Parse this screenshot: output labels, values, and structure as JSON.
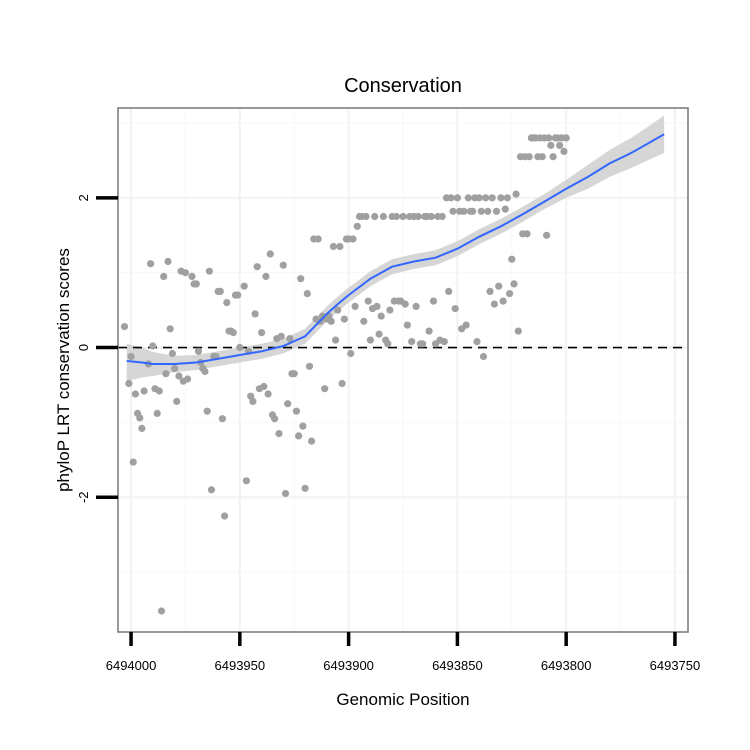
{
  "chart_data": {
    "type": "scatter",
    "title": "Conservation",
    "xlabel": "Genomic Position",
    "ylabel": "phyloP LRT conservation scores",
    "x_reversed": true,
    "xlim": [
      6494006,
      6493744
    ],
    "ylim": [
      -3.8,
      3.2
    ],
    "x_ticks": [
      6494000,
      6493950,
      6493900,
      6493850,
      6493800,
      6493750
    ],
    "x_tick_labels": [
      "6494000",
      "6493950",
      "6493900",
      "6493850",
      "6493800",
      "6493750"
    ],
    "y_ticks": [
      -2,
      0,
      2
    ],
    "y_tick_labels": [
      "-2",
      "0",
      "2"
    ],
    "reference_line": {
      "y": 0,
      "style": "dashed"
    },
    "points": [
      [
        6494003,
        0.28
      ],
      [
        6494001,
        -0.48
      ],
      [
        6494000,
        -0.12
      ],
      [
        6493999,
        -1.53
      ],
      [
        6493998,
        -0.62
      ],
      [
        6493997,
        -0.88
      ],
      [
        6493996,
        -0.94
      ],
      [
        6493995,
        -1.08
      ],
      [
        6493994,
        -0.58
      ],
      [
        6493992,
        -0.22
      ],
      [
        6493991,
        1.12
      ],
      [
        6493990,
        0.02
      ],
      [
        6493989,
        -0.55
      ],
      [
        6493988,
        -0.88
      ],
      [
        6493987,
        -0.58
      ],
      [
        6493986,
        -3.52
      ],
      [
        6493985,
        0.95
      ],
      [
        6493984,
        -0.35
      ],
      [
        6493983,
        1.15
      ],
      [
        6493982,
        0.25
      ],
      [
        6493981,
        -0.08
      ],
      [
        6493980,
        -0.28
      ],
      [
        6493979,
        -0.72
      ],
      [
        6493978,
        -0.38
      ],
      [
        6493977,
        1.02
      ],
      [
        6493976,
        -0.45
      ],
      [
        6493975,
        1.0
      ],
      [
        6493974,
        -0.42
      ],
      [
        6493972,
        0.95
      ],
      [
        6493971,
        0.85
      ],
      [
        6493970,
        0.85
      ],
      [
        6493969,
        -0.05
      ],
      [
        6493968,
        -0.2
      ],
      [
        6493967,
        -0.28
      ],
      [
        6493966,
        -0.32
      ],
      [
        6493965,
        -0.85
      ],
      [
        6493964,
        1.02
      ],
      [
        6493963,
        -1.9
      ],
      [
        6493962,
        -0.12
      ],
      [
        6493961,
        -0.12
      ],
      [
        6493960,
        0.75
      ],
      [
        6493959,
        0.75
      ],
      [
        6493958,
        -0.95
      ],
      [
        6493957,
        -2.25
      ],
      [
        6493956,
        0.6
      ],
      [
        6493955,
        0.22
      ],
      [
        6493954,
        0.22
      ],
      [
        6493953,
        0.2
      ],
      [
        6493952,
        0.7
      ],
      [
        6493951,
        0.7
      ],
      [
        6493950,
        0.0
      ],
      [
        6493948,
        0.82
      ],
      [
        6493947,
        -1.78
      ],
      [
        6493946,
        -0.05
      ],
      [
        6493945,
        -0.65
      ],
      [
        6493944,
        -0.72
      ],
      [
        6493943,
        0.45
      ],
      [
        6493942,
        1.08
      ],
      [
        6493941,
        -0.55
      ],
      [
        6493940,
        0.2
      ],
      [
        6493939,
        -0.52
      ],
      [
        6493938,
        0.95
      ],
      [
        6493937,
        -0.62
      ],
      [
        6493936,
        1.25
      ],
      [
        6493935,
        -0.9
      ],
      [
        6493934,
        -0.95
      ],
      [
        6493933,
        0.12
      ],
      [
        6493932,
        -1.15
      ],
      [
        6493931,
        0.15
      ],
      [
        6493930,
        1.1
      ],
      [
        6493929,
        -1.95
      ],
      [
        6493928,
        -0.75
      ],
      [
        6493927,
        0.12
      ],
      [
        6493926,
        -0.35
      ],
      [
        6493925,
        -0.35
      ],
      [
        6493924,
        -0.85
      ],
      [
        6493923,
        -1.18
      ],
      [
        6493922,
        0.92
      ],
      [
        6493921,
        -1.05
      ],
      [
        6493920,
        -1.88
      ],
      [
        6493919,
        0.72
      ],
      [
        6493918,
        -0.25
      ],
      [
        6493917,
        -1.25
      ],
      [
        6493916,
        1.45
      ],
      [
        6493915,
        0.38
      ],
      [
        6493914,
        1.45
      ],
      [
        6493913,
        0.35
      ],
      [
        6493912,
        0.42
      ],
      [
        6493911,
        -0.55
      ],
      [
        6493910,
        0.38
      ],
      [
        6493909,
        0.42
      ],
      [
        6493908,
        0.35
      ],
      [
        6493907,
        1.35
      ],
      [
        6493906,
        0.1
      ],
      [
        6493905,
        0.5
      ],
      [
        6493904,
        1.35
      ],
      [
        6493903,
        -0.48
      ],
      [
        6493902,
        0.38
      ],
      [
        6493901,
        1.45
      ],
      [
        6493900,
        1.45
      ],
      [
        6493899,
        -0.08
      ],
      [
        6493898,
        1.45
      ],
      [
        6493897,
        0.55
      ],
      [
        6493896,
        1.62
      ],
      [
        6493895,
        1.75
      ],
      [
        6493894,
        1.75
      ],
      [
        6493893,
        0.35
      ],
      [
        6493892,
        1.75
      ],
      [
        6493891,
        0.62
      ],
      [
        6493890,
        0.1
      ],
      [
        6493889,
        0.52
      ],
      [
        6493888,
        1.75
      ],
      [
        6493887,
        0.55
      ],
      [
        6493886,
        0.18
      ],
      [
        6493885,
        0.42
      ],
      [
        6493884,
        1.75
      ],
      [
        6493883,
        0.1
      ],
      [
        6493882,
        0.05
      ],
      [
        6493881,
        0.5
      ],
      [
        6493880,
        1.75
      ],
      [
        6493879,
        0.62
      ],
      [
        6493878,
        1.75
      ],
      [
        6493877,
        0.62
      ],
      [
        6493876,
        0.62
      ],
      [
        6493875,
        1.75
      ],
      [
        6493874,
        0.58
      ],
      [
        6493873,
        0.3
      ],
      [
        6493872,
        1.75
      ],
      [
        6493871,
        0.08
      ],
      [
        6493870,
        1.75
      ],
      [
        6493869,
        0.55
      ],
      [
        6493868,
        1.75
      ],
      [
        6493867,
        0.05
      ],
      [
        6493866,
        0.05
      ],
      [
        6493865,
        1.75
      ],
      [
        6493864,
        1.75
      ],
      [
        6493863,
        0.22
      ],
      [
        6493862,
        1.75
      ],
      [
        6493861,
        0.62
      ],
      [
        6493860,
        0.05
      ],
      [
        6493859,
        1.75
      ],
      [
        6493858,
        0.1
      ],
      [
        6493857,
        1.75
      ],
      [
        6493856,
        0.08
      ],
      [
        6493855,
        2.0
      ],
      [
        6493854,
        0.75
      ],
      [
        6493853,
        2.0
      ],
      [
        6493852,
        1.82
      ],
      [
        6493851,
        0.52
      ],
      [
        6493850,
        2.0
      ],
      [
        6493849,
        1.82
      ],
      [
        6493848,
        0.25
      ],
      [
        6493847,
        1.82
      ],
      [
        6493846,
        0.3
      ],
      [
        6493845,
        2.0
      ],
      [
        6493844,
        1.82
      ],
      [
        6493843,
        1.82
      ],
      [
        6493842,
        2.0
      ],
      [
        6493841,
        0.08
      ],
      [
        6493840,
        2.0
      ],
      [
        6493839,
        1.82
      ],
      [
        6493838,
        -0.12
      ],
      [
        6493837,
        2.0
      ],
      [
        6493836,
        1.82
      ],
      [
        6493835,
        0.75
      ],
      [
        6493834,
        2.0
      ],
      [
        6493833,
        0.58
      ],
      [
        6493832,
        1.82
      ],
      [
        6493831,
        0.82
      ],
      [
        6493830,
        2.0
      ],
      [
        6493829,
        0.62
      ],
      [
        6493828,
        1.85
      ],
      [
        6493827,
        2.0
      ],
      [
        6493826,
        0.72
      ],
      [
        6493825,
        1.18
      ],
      [
        6493824,
        0.85
      ],
      [
        6493823,
        2.05
      ],
      [
        6493822,
        0.22
      ],
      [
        6493821,
        2.55
      ],
      [
        6493820,
        1.52
      ],
      [
        6493819,
        2.55
      ],
      [
        6493818,
        1.52
      ],
      [
        6493817,
        2.55
      ],
      [
        6493816,
        2.8
      ],
      [
        6493815,
        2.8
      ],
      [
        6493814,
        2.8
      ],
      [
        6493813,
        2.55
      ],
      [
        6493812,
        2.8
      ],
      [
        6493811,
        2.55
      ],
      [
        6493810,
        2.8
      ],
      [
        6493809,
        1.5
      ],
      [
        6493808,
        2.8
      ],
      [
        6493807,
        2.7
      ],
      [
        6493806,
        2.55
      ],
      [
        6493805,
        2.8
      ],
      [
        6493804,
        2.8
      ],
      [
        6493803,
        2.7
      ],
      [
        6493802,
        2.8
      ],
      [
        6493801,
        2.62
      ],
      [
        6493800,
        2.8
      ]
    ],
    "smooth": {
      "method": "loess",
      "color": "#3366ff",
      "x": [
        6494002,
        6493995,
        6493990,
        6493980,
        6493970,
        6493960,
        6493950,
        6493940,
        6493930,
        6493920,
        6493915,
        6493910,
        6493905,
        6493900,
        6493890,
        6493880,
        6493870,
        6493860,
        6493850,
        6493840,
        6493830,
        6493820,
        6493810,
        6493800,
        6493790,
        6493780,
        6493770,
        6493755
      ],
      "y": [
        -0.18,
        -0.2,
        -0.22,
        -0.22,
        -0.2,
        -0.15,
        -0.1,
        -0.05,
        0.02,
        0.15,
        0.3,
        0.45,
        0.58,
        0.7,
        0.92,
        1.08,
        1.15,
        1.2,
        1.32,
        1.48,
        1.62,
        1.78,
        1.95,
        2.12,
        2.28,
        2.46,
        2.6,
        2.85
      ],
      "se_lower": [
        -0.45,
        -0.4,
        -0.38,
        -0.33,
        -0.3,
        -0.25,
        -0.2,
        -0.15,
        -0.08,
        0.05,
        0.2,
        0.35,
        0.48,
        0.6,
        0.82,
        0.98,
        1.05,
        1.1,
        1.22,
        1.38,
        1.52,
        1.68,
        1.85,
        2.0,
        2.12,
        2.28,
        2.4,
        2.6
      ],
      "se_upper": [
        0.05,
        0.0,
        -0.06,
        -0.11,
        -0.1,
        -0.05,
        0.0,
        0.05,
        0.12,
        0.25,
        0.4,
        0.55,
        0.68,
        0.8,
        1.02,
        1.18,
        1.25,
        1.3,
        1.42,
        1.58,
        1.72,
        1.88,
        2.05,
        2.24,
        2.44,
        2.64,
        2.8,
        3.1
      ]
    },
    "colors": {
      "points": "#a0a0a0",
      "band": "#d2d2d2",
      "grid": "#f2f2f2",
      "border": "#7f7f7f"
    }
  }
}
